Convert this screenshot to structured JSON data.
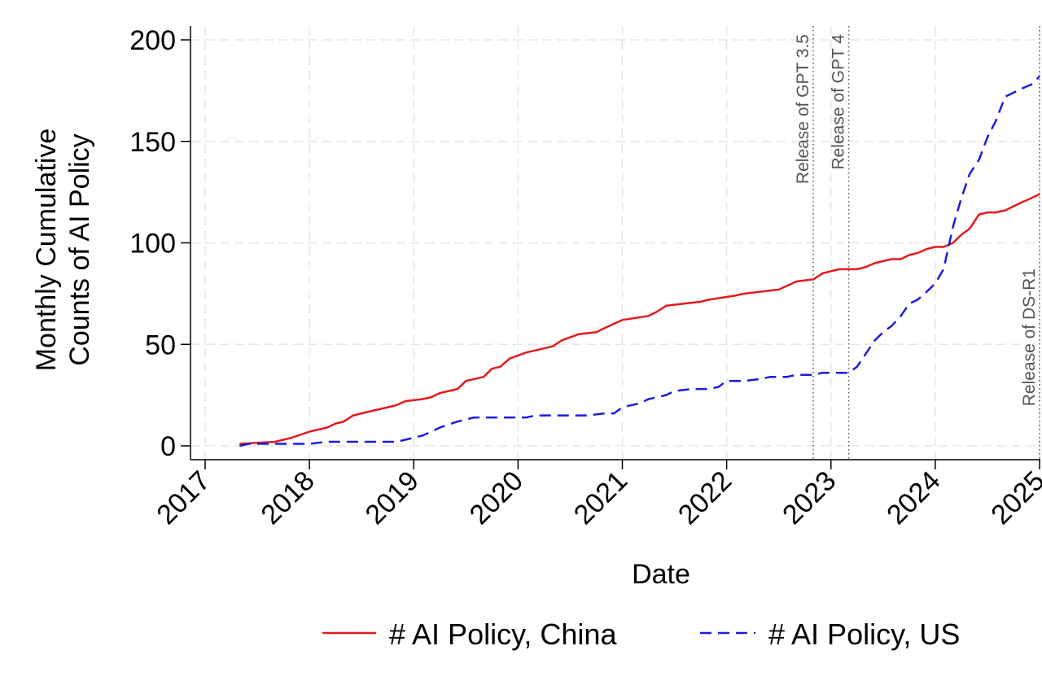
{
  "chart_data": {
    "type": "line",
    "title": "",
    "xlabel": "Date",
    "ylabel_lines": [
      "Monthly Cumulative",
      "Counts of AI Policy"
    ],
    "xlim": [
      2017,
      2025
    ],
    "ylim": [
      0,
      200
    ],
    "x_ticks": [
      2017,
      2018,
      2019,
      2020,
      2021,
      2022,
      2023,
      2024,
      2025
    ],
    "x_tick_labels": [
      "2017",
      "2018",
      "2019",
      "2020",
      "2021",
      "2022",
      "2023",
      "2024",
      "2025"
    ],
    "y_ticks": [
      0,
      50,
      100,
      150,
      200
    ],
    "y_tick_labels": [
      "0",
      "50",
      "100",
      "150",
      "200"
    ],
    "grid": true,
    "legend_position": "bottom",
    "annotations": [
      {
        "x": 2022.83,
        "label": "Release of GPT 3.5"
      },
      {
        "x": 2023.17,
        "label": "Release of GPT 4"
      },
      {
        "x": 2025.0,
        "label": "Release of DS-R1"
      }
    ],
    "series": [
      {
        "name": "# AI Policy, China",
        "color": "#e41a1c",
        "style": "solid",
        "points": [
          [
            2017.33,
            1
          ],
          [
            2017.5,
            1.5
          ],
          [
            2017.67,
            2
          ],
          [
            2017.83,
            4
          ],
          [
            2018.0,
            7
          ],
          [
            2018.17,
            9
          ],
          [
            2018.25,
            11
          ],
          [
            2018.33,
            12
          ],
          [
            2018.42,
            15
          ],
          [
            2018.58,
            17
          ],
          [
            2018.75,
            19
          ],
          [
            2018.83,
            20
          ],
          [
            2018.92,
            22
          ],
          [
            2019.08,
            23
          ],
          [
            2019.17,
            24
          ],
          [
            2019.25,
            26
          ],
          [
            2019.42,
            28
          ],
          [
            2019.5,
            32
          ],
          [
            2019.67,
            34
          ],
          [
            2019.75,
            38
          ],
          [
            2019.83,
            39
          ],
          [
            2019.92,
            43
          ],
          [
            2020.08,
            46
          ],
          [
            2020.25,
            48
          ],
          [
            2020.33,
            49
          ],
          [
            2020.42,
            52
          ],
          [
            2020.58,
            55
          ],
          [
            2020.75,
            56
          ],
          [
            2020.83,
            58
          ],
          [
            2021.0,
            62
          ],
          [
            2021.25,
            64
          ],
          [
            2021.33,
            66
          ],
          [
            2021.42,
            69
          ],
          [
            2021.58,
            70
          ],
          [
            2021.75,
            71
          ],
          [
            2021.83,
            72
          ],
          [
            2022.08,
            74
          ],
          [
            2022.17,
            75
          ],
          [
            2022.5,
            77
          ],
          [
            2022.67,
            81
          ],
          [
            2022.83,
            82
          ],
          [
            2022.92,
            85
          ],
          [
            2023.08,
            87
          ],
          [
            2023.25,
            87
          ],
          [
            2023.33,
            88
          ],
          [
            2023.42,
            90
          ],
          [
            2023.58,
            92
          ],
          [
            2023.67,
            92
          ],
          [
            2023.75,
            94
          ],
          [
            2023.83,
            95
          ],
          [
            2023.92,
            97
          ],
          [
            2024.0,
            98
          ],
          [
            2024.08,
            98
          ],
          [
            2024.17,
            100
          ],
          [
            2024.25,
            104
          ],
          [
            2024.33,
            107
          ],
          [
            2024.42,
            114
          ],
          [
            2024.5,
            115
          ],
          [
            2024.58,
            115
          ],
          [
            2024.67,
            116
          ],
          [
            2024.75,
            118
          ],
          [
            2024.83,
            120
          ],
          [
            2024.92,
            122
          ],
          [
            2025.0,
            124
          ]
        ]
      },
      {
        "name": "# AI Policy, US",
        "color": "#1c1cdc",
        "style": "dashed",
        "points": [
          [
            2017.33,
            0
          ],
          [
            2017.42,
            1
          ],
          [
            2017.58,
            1
          ],
          [
            2017.75,
            1
          ],
          [
            2018.0,
            1
          ],
          [
            2018.17,
            2
          ],
          [
            2018.33,
            2
          ],
          [
            2018.5,
            2
          ],
          [
            2018.67,
            2
          ],
          [
            2018.83,
            2
          ],
          [
            2018.92,
            3
          ],
          [
            2019.0,
            4
          ],
          [
            2019.08,
            5
          ],
          [
            2019.17,
            7
          ],
          [
            2019.25,
            9
          ],
          [
            2019.42,
            12
          ],
          [
            2019.58,
            14
          ],
          [
            2019.75,
            14
          ],
          [
            2019.92,
            14
          ],
          [
            2020.08,
            14
          ],
          [
            2020.17,
            15
          ],
          [
            2020.33,
            15
          ],
          [
            2020.5,
            15
          ],
          [
            2020.67,
            15
          ],
          [
            2020.83,
            16
          ],
          [
            2020.92,
            16
          ],
          [
            2021.0,
            19
          ],
          [
            2021.17,
            21
          ],
          [
            2021.25,
            23
          ],
          [
            2021.42,
            25
          ],
          [
            2021.5,
            27
          ],
          [
            2021.67,
            28
          ],
          [
            2021.83,
            28
          ],
          [
            2021.92,
            29
          ],
          [
            2022.0,
            32
          ],
          [
            2022.17,
            32
          ],
          [
            2022.33,
            33
          ],
          [
            2022.42,
            34
          ],
          [
            2022.58,
            34
          ],
          [
            2022.67,
            35
          ],
          [
            2022.83,
            35
          ],
          [
            2022.92,
            36
          ],
          [
            2023.0,
            36
          ],
          [
            2023.17,
            36
          ],
          [
            2023.25,
            39
          ],
          [
            2023.33,
            45
          ],
          [
            2023.42,
            52
          ],
          [
            2023.5,
            56
          ],
          [
            2023.58,
            59
          ],
          [
            2023.67,
            64
          ],
          [
            2023.75,
            70
          ],
          [
            2023.83,
            72
          ],
          [
            2023.92,
            76
          ],
          [
            2024.0,
            80
          ],
          [
            2024.08,
            87
          ],
          [
            2024.17,
            108
          ],
          [
            2024.25,
            122
          ],
          [
            2024.33,
            134
          ],
          [
            2024.42,
            141
          ],
          [
            2024.5,
            152
          ],
          [
            2024.58,
            160
          ],
          [
            2024.67,
            172
          ],
          [
            2024.75,
            174
          ],
          [
            2024.83,
            176
          ],
          [
            2024.92,
            178
          ],
          [
            2025.0,
            182
          ]
        ]
      }
    ]
  }
}
